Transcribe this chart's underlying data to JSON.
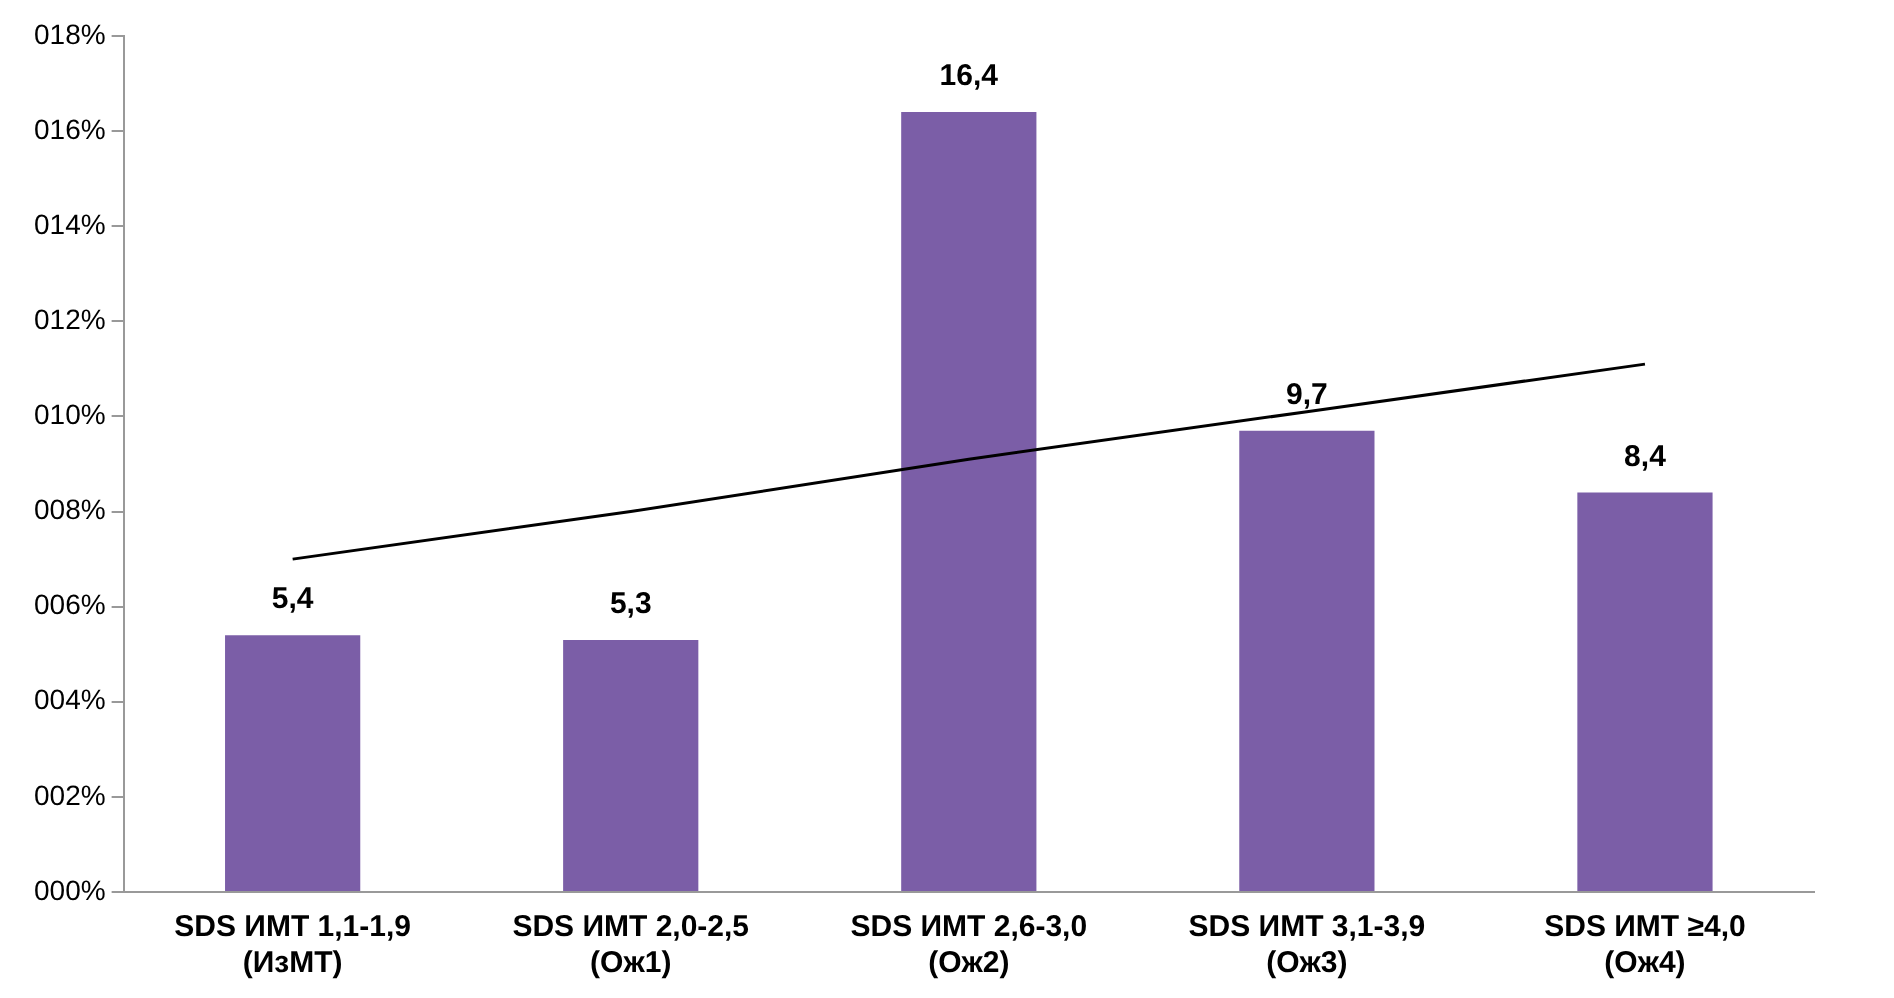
{
  "chart_data": {
    "type": "bar",
    "categories": [
      "SDS ИМТ 1,1-1,9 (ИзМТ)",
      "SDS ИМТ 2,0-2,5 (Ож1)",
      "SDS ИМТ 2,6-3,0 (Ож2)",
      "SDS ИМТ 3,1-3,9 (Ож3)",
      "SDS ИМТ ≥4,0 (Ож4)"
    ],
    "series": [
      {
        "color": "#7b5ea7",
        "values": [
          5.4,
          5.3,
          16.4,
          9.7,
          8.4
        ],
        "value_labels": [
          "5,4",
          "5,3",
          "16,4",
          "9,7",
          "8,4"
        ]
      },
      {
        "type": "line",
        "color": "#000000",
        "values": [
          7.0,
          8.0,
          9.1,
          10.1,
          11.1
        ]
      }
    ],
    "ylim": [
      0,
      18
    ],
    "yticks": [
      {
        "value": 0,
        "label": "000%"
      },
      {
        "value": 2,
        "label": "002%"
      },
      {
        "value": 4,
        "label": "004%"
      },
      {
        "value": 6,
        "label": "006%"
      },
      {
        "value": 8,
        "label": "008%"
      },
      {
        "value": 10,
        "label": "010%"
      },
      {
        "value": 12,
        "label": "012%"
      },
      {
        "value": 14,
        "label": "014%"
      },
      {
        "value": 16,
        "label": "016%"
      },
      {
        "value": 18,
        "label": "018%"
      }
    ],
    "grid": false,
    "legend": false,
    "marker": "none",
    "line_style": "solid"
  }
}
